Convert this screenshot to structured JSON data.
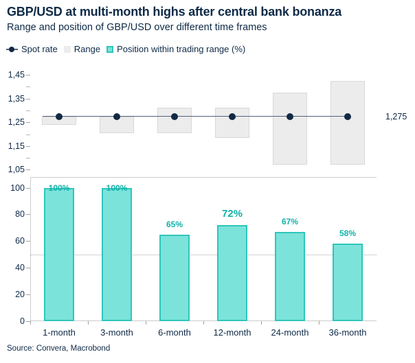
{
  "header": {
    "title": "GBP/USD at multi-month highs after central bank bonanza",
    "subtitle": "Range and position of GBP/USD over different time frames"
  },
  "legend": {
    "items": [
      {
        "label": "Spot rate",
        "marker": "dot-on-line"
      },
      {
        "label": "Range",
        "marker": "gray-square"
      },
      {
        "label": "Position within trading range (%)",
        "marker": "teal-square"
      }
    ]
  },
  "source": "Source: Convera, Macrobond",
  "colors": {
    "navy_text": "#0e2a47",
    "spot_dot": "#122944",
    "spot_line": "#50617a",
    "range_fill": "#ececec",
    "range_border": "#d8d8d8",
    "position_fill": "#7ce3da",
    "position_border": "#2ec6bb",
    "position_label": "#10b2a8",
    "axis_line": "#cccccc",
    "tick": "#a3a3a3",
    "tick_minor": "#b8b8b8",
    "refline": "#a8a8a8"
  },
  "chart_data": [
    {
      "panel": "top",
      "type": "range-bar+line-dots",
      "categories": [
        "1-month",
        "3-month",
        "6-month",
        "12-month",
        "24-month",
        "36-month"
      ],
      "series": [
        {
          "name": "Range",
          "type": "floating-bar",
          "low": [
            1.24,
            1.205,
            1.205,
            1.185,
            1.07,
            1.07
          ],
          "high": [
            1.275,
            1.275,
            1.31,
            1.31,
            1.375,
            1.425
          ]
        },
        {
          "name": "Spot rate",
          "type": "dots-with-line",
          "values": [
            1.275,
            1.275,
            1.275,
            1.275,
            1.275,
            1.275
          ],
          "end_label": "1,275"
        }
      ],
      "ylim": [
        1.05,
        1.45
      ],
      "yticks": [
        {
          "label": "1,45",
          "value": 1.45
        },
        {
          "label": "1,35",
          "value": 1.35
        },
        {
          "label": "1,25",
          "value": 1.25
        },
        {
          "label": "1,15",
          "value": 1.15
        },
        {
          "label": "1,05",
          "value": 1.05
        }
      ],
      "yticks_minor": [
        1.4,
        1.3,
        1.2,
        1.1
      ],
      "grid": false
    },
    {
      "panel": "bottom",
      "type": "bar",
      "categories": [
        "1-month",
        "3-month",
        "6-month",
        "12-month",
        "24-month",
        "36-month"
      ],
      "series": [
        {
          "name": "Position within trading range (%)",
          "values": [
            100,
            100,
            65,
            72,
            67,
            58
          ],
          "labels": [
            "100%",
            "100%",
            "65%",
            "72%",
            "67%",
            "58%"
          ],
          "emphasized_index": 3
        }
      ],
      "ylim": [
        0,
        100
      ],
      "yticks": [
        {
          "label": "100",
          "value": 100
        },
        {
          "label": "80",
          "value": 80
        },
        {
          "label": "60",
          "value": 60
        },
        {
          "label": "40",
          "value": 40
        },
        {
          "label": "20",
          "value": 20
        },
        {
          "label": "0",
          "value": 0
        }
      ],
      "reference_line": 50,
      "grid": false
    }
  ]
}
